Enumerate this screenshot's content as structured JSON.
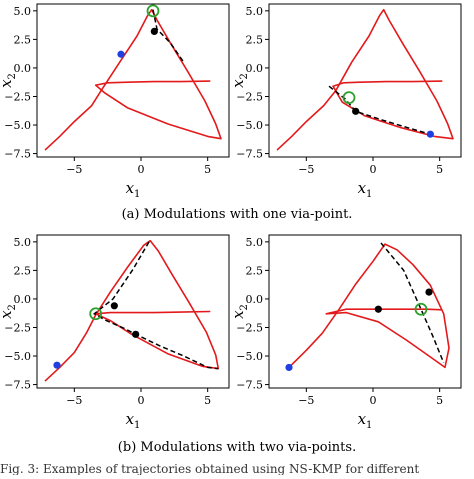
{
  "captions": {
    "a": "(a) Modulations with one via-point.",
    "b": "(b) Modulations with two via-points.",
    "figure_note": "Fig. 3: Examples of trajectories obtained using NS-KMP for different"
  },
  "colors": {
    "trajectory": "#e31a1c",
    "modulated": "#000000",
    "start_point": "#1f3fe0",
    "via_point": "#000000",
    "goal_circle": "#2ca02c"
  },
  "chart_data": [
    {
      "type": "line",
      "panel": "a-left",
      "xlabel": "x",
      "xlabel_sub": "1",
      "ylabel": "x",
      "ylabel_sub": "2",
      "xlim": [
        -7.8,
        6.6
      ],
      "ylim": [
        -7.8,
        5.6
      ],
      "xticks": [
        {
          "v": -5,
          "label": "−5"
        },
        {
          "v": 0,
          "label": "0"
        },
        {
          "v": 5,
          "label": "5"
        }
      ],
      "yticks": [
        {
          "v": 5,
          "label": "5.0"
        },
        {
          "v": 2.5,
          "label": "2.5"
        },
        {
          "v": 0,
          "label": "0.0"
        },
        {
          "v": -2.5,
          "label": "−2.5"
        },
        {
          "v": -5,
          "label": "−5.0"
        },
        {
          "v": -7.5,
          "label": "−7.5"
        }
      ],
      "red": [
        [
          -7.2,
          -7.2
        ],
        [
          -6.1,
          -6.0
        ],
        [
          -5.0,
          -4.7
        ],
        [
          -3.7,
          -3.3
        ],
        [
          -3.0,
          -2.0
        ],
        [
          -1.6,
          0.5
        ],
        [
          -0.3,
          2.8
        ],
        [
          0.5,
          4.6
        ],
        [
          0.8,
          5.1
        ],
        [
          1.2,
          4.2
        ],
        [
          2.2,
          2.2
        ],
        [
          3.5,
          -0.3
        ],
        [
          4.8,
          -2.9
        ],
        [
          5.6,
          -4.9
        ],
        [
          6.0,
          -6.2
        ],
        [
          5.0,
          -6.0
        ],
        [
          2.0,
          -4.9
        ],
        [
          -1.0,
          -3.5
        ],
        [
          -2.7,
          -2.2
        ],
        [
          -3.4,
          -1.5
        ],
        [
          -2.5,
          -1.3
        ],
        [
          -1.0,
          -1.25
        ],
        [
          1.0,
          -1.2
        ],
        [
          3.0,
          -1.2
        ],
        [
          5.2,
          -1.15
        ]
      ],
      "black": [
        [
          0.9,
          5.1
        ],
        [
          1.2,
          3.4
        ],
        [
          2.2,
          2.2
        ],
        [
          3.2,
          0.5
        ]
      ],
      "start": [
        -1.5,
        1.2
      ],
      "via": [
        [
          1.0,
          3.2
        ]
      ],
      "goal": [
        0.9,
        5.0
      ]
    },
    {
      "type": "line",
      "panel": "a-right",
      "xlabel": "x",
      "xlabel_sub": "1",
      "ylabel": "x",
      "ylabel_sub": "2",
      "xlim": [
        -7.8,
        6.6
      ],
      "ylim": [
        -7.8,
        5.6
      ],
      "xticks": [
        {
          "v": -5,
          "label": "−5"
        },
        {
          "v": 0,
          "label": "0"
        },
        {
          "v": 5,
          "label": "5"
        }
      ],
      "yticks": [
        {
          "v": 5,
          "label": "5.0"
        },
        {
          "v": 2.5,
          "label": "2.5"
        },
        {
          "v": 0,
          "label": "0.0"
        },
        {
          "v": -2.5,
          "label": "−2.5"
        },
        {
          "v": -5,
          "label": "−5.0"
        },
        {
          "v": -7.5,
          "label": "−7.5"
        }
      ],
      "red": [
        [
          -7.2,
          -7.2
        ],
        [
          -6.1,
          -6.0
        ],
        [
          -5.0,
          -4.7
        ],
        [
          -3.7,
          -3.3
        ],
        [
          -2.8,
          -2.0
        ],
        [
          -1.6,
          0.5
        ],
        [
          -0.3,
          2.8
        ],
        [
          0.5,
          4.6
        ],
        [
          0.8,
          5.1
        ],
        [
          1.2,
          4.2
        ],
        [
          2.2,
          2.2
        ],
        [
          3.5,
          -0.3
        ],
        [
          4.8,
          -2.9
        ],
        [
          5.6,
          -4.9
        ],
        [
          6.0,
          -6.2
        ],
        [
          4.6,
          -6.0
        ],
        [
          2.0,
          -5.2
        ],
        [
          -0.6,
          -4.2
        ],
        [
          -2.3,
          -3.0
        ],
        [
          -3.0,
          -1.6
        ],
        [
          -2.2,
          -1.3
        ],
        [
          -1.0,
          -1.25
        ],
        [
          1.0,
          -1.2
        ],
        [
          3.0,
          -1.2
        ],
        [
          5.2,
          -1.15
        ]
      ],
      "black": [
        [
          -3.3,
          -1.6
        ],
        [
          -2.1,
          -2.7
        ],
        [
          -1.3,
          -3.8
        ],
        [
          0.8,
          -4.6
        ],
        [
          2.8,
          -5.3
        ],
        [
          4.3,
          -5.8
        ]
      ],
      "start": [
        4.3,
        -5.8
      ],
      "via": [
        [
          -1.3,
          -3.8
        ]
      ],
      "goal": [
        -1.8,
        -2.6
      ]
    },
    {
      "type": "line",
      "panel": "b-left",
      "xlabel": "x",
      "xlabel_sub": "1",
      "ylabel": "x",
      "ylabel_sub": "2",
      "xlim": [
        -7.8,
        6.6
      ],
      "ylim": [
        -7.8,
        5.6
      ],
      "xticks": [
        {
          "v": -5,
          "label": "−5"
        },
        {
          "v": 0,
          "label": "0"
        },
        {
          "v": 5,
          "label": "5"
        }
      ],
      "yticks": [
        {
          "v": 5,
          "label": "5.0"
        },
        {
          "v": 2.5,
          "label": "2.5"
        },
        {
          "v": 0,
          "label": "0.0"
        },
        {
          "v": -2.5,
          "label": "−2.5"
        },
        {
          "v": -5,
          "label": "−5.0"
        },
        {
          "v": -7.5,
          "label": "−7.5"
        }
      ],
      "red": [
        [
          -7.2,
          -7.2
        ],
        [
          -6.1,
          -6.0
        ],
        [
          -5.0,
          -4.7
        ],
        [
          -4.1,
          -3.0
        ],
        [
          -3.4,
          -1.4
        ],
        [
          -2.3,
          0.6
        ],
        [
          -1.0,
          2.8
        ],
        [
          0.2,
          4.7
        ],
        [
          0.7,
          5.1
        ],
        [
          1.3,
          4.2
        ],
        [
          2.3,
          2.2
        ],
        [
          3.6,
          -0.3
        ],
        [
          4.9,
          -2.9
        ],
        [
          5.6,
          -4.9
        ],
        [
          5.8,
          -6.1
        ],
        [
          4.6,
          -5.9
        ],
        [
          2.0,
          -4.8
        ],
        [
          -0.7,
          -3.1
        ],
        [
          -2.3,
          -1.9
        ],
        [
          -3.4,
          -1.3
        ],
        [
          -2.3,
          -1.2
        ],
        [
          -1.0,
          -1.2
        ],
        [
          1.0,
          -1.2
        ],
        [
          3.0,
          -1.15
        ],
        [
          5.2,
          -1.1
        ]
      ],
      "black": [
        [
          0.6,
          5.0
        ],
        [
          -0.6,
          2.6
        ],
        [
          -2.1,
          0.0
        ],
        [
          -3.5,
          -1.3
        ],
        [
          -2.6,
          -1.9
        ],
        [
          -1.4,
          -2.5
        ],
        [
          -0.4,
          -3.1
        ],
        [
          1.4,
          -4.1
        ],
        [
          3.2,
          -5.0
        ],
        [
          5.0,
          -6.0
        ],
        [
          5.8,
          -6.1
        ]
      ],
      "start": [
        -6.3,
        -5.8
      ],
      "via": [
        [
          -2.0,
          -0.6
        ],
        [
          -0.4,
          -3.1
        ]
      ],
      "goal": [
        -3.4,
        -1.3
      ]
    },
    {
      "type": "line",
      "panel": "b-right",
      "xlabel": "x",
      "xlabel_sub": "1",
      "ylabel": "x",
      "ylabel_sub": "2",
      "xlim": [
        -7.8,
        6.6
      ],
      "ylim": [
        -7.8,
        5.6
      ],
      "xticks": [
        {
          "v": -5,
          "label": "−5"
        },
        {
          "v": 0,
          "label": "0"
        },
        {
          "v": 5,
          "label": "5"
        }
      ],
      "yticks": [
        {
          "v": 5,
          "label": "5.0"
        },
        {
          "v": 2.5,
          "label": "2.5"
        },
        {
          "v": 0,
          "label": "0.0"
        },
        {
          "v": -2.5,
          "label": "−2.5"
        },
        {
          "v": -5,
          "label": "−5.0"
        },
        {
          "v": -7.5,
          "label": "−7.5"
        }
      ],
      "red": [
        [
          -6.3,
          -6.0
        ],
        [
          -5.0,
          -4.5
        ],
        [
          -3.8,
          -3.0
        ],
        [
          -2.6,
          -1.0
        ],
        [
          -1.3,
          1.3
        ],
        [
          0.0,
          3.3
        ],
        [
          0.9,
          4.8
        ],
        [
          1.8,
          4.3
        ],
        [
          3.0,
          3.0
        ],
        [
          4.3,
          1.2
        ],
        [
          5.3,
          -1.3
        ],
        [
          5.7,
          -4.3
        ],
        [
          5.4,
          -6.0
        ],
        [
          4.2,
          -5.0
        ],
        [
          2.5,
          -3.6
        ],
        [
          0.4,
          -2.0
        ],
        [
          -2.0,
          -1.2
        ],
        [
          -3.5,
          -1.3
        ],
        [
          -2.0,
          -0.9
        ],
        [
          0.0,
          -0.9
        ],
        [
          2.0,
          -0.9
        ],
        [
          4.0,
          -0.9
        ],
        [
          5.2,
          -0.95
        ]
      ],
      "black": [
        [
          0.6,
          4.9
        ],
        [
          2.3,
          2.5
        ],
        [
          3.6,
          -0.9
        ],
        [
          4.5,
          -3.3
        ],
        [
          5.3,
          -5.6
        ]
      ],
      "start": [
        -6.3,
        -6.0
      ],
      "via": [
        [
          0.4,
          -0.9
        ],
        [
          4.2,
          0.6
        ]
      ],
      "goal": [
        3.6,
        -0.9
      ]
    }
  ]
}
